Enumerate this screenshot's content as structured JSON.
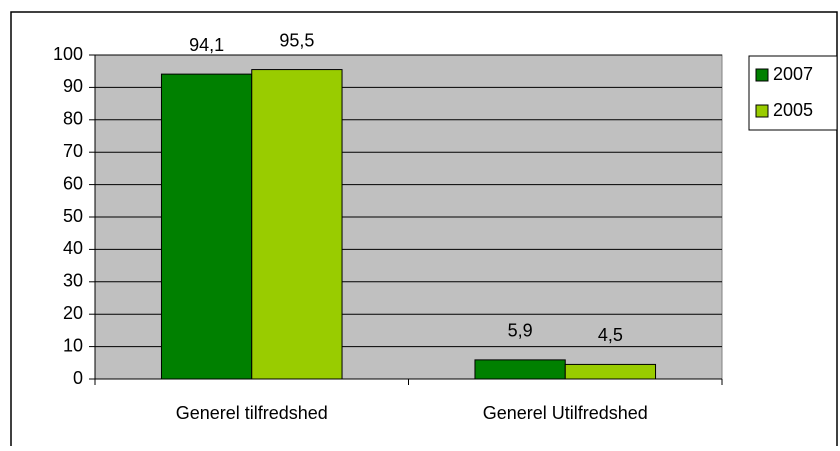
{
  "chart_data": {
    "type": "bar",
    "categories": [
      "Generel tilfredshed",
      "Generel Utilfredshed"
    ],
    "series": [
      {
        "name": "2007",
        "color": "#008000",
        "values": [
          94.1,
          5.9
        ],
        "value_labels": [
          "94,1",
          "5,9"
        ]
      },
      {
        "name": "2005",
        "color": "#99cc00",
        "values": [
          95.5,
          4.5
        ],
        "value_labels": [
          "95,5",
          "4,5"
        ]
      }
    ],
    "ylim": [
      0,
      100
    ],
    "yticks": [
      0,
      10,
      20,
      30,
      40,
      50,
      60,
      70,
      80,
      90,
      100
    ],
    "grid": true,
    "plot_background": "#c0c0c0",
    "legend": "right"
  }
}
